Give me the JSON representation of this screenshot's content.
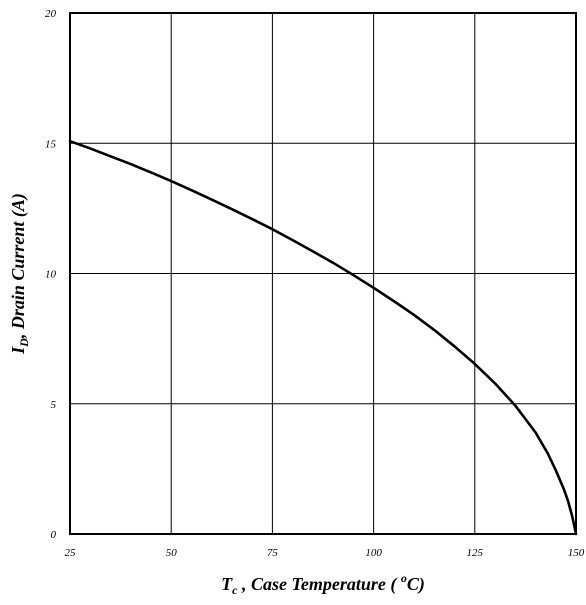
{
  "chart_data": {
    "type": "line",
    "title": "",
    "xlabel": {
      "symbol": "T",
      "subscript": "c",
      "text": " , Case Temperature (  ",
      "superscript": "o",
      "unit_tail": "C)"
    },
    "ylabel": {
      "symbol": "I",
      "subscript": "D",
      "text": ", Drain Current (A)"
    },
    "xlim": [
      25,
      150
    ],
    "ylim": [
      0,
      20
    ],
    "x_ticks": [
      25,
      50,
      75,
      100,
      125,
      150
    ],
    "y_ticks": [
      0,
      5,
      10,
      15,
      20
    ],
    "grid": true,
    "legend": "none",
    "series": [
      {
        "color": "#000000",
        "x": [
          25,
          30,
          35,
          40,
          45,
          50,
          55,
          60,
          65,
          70,
          75,
          80,
          85,
          90,
          95,
          100,
          105,
          110,
          115,
          120,
          125,
          130,
          135,
          140,
          143,
          145,
          147,
          148,
          149,
          149.6,
          150
        ],
        "y": [
          15.08,
          14.8,
          14.5,
          14.2,
          13.88,
          13.55,
          13.2,
          12.84,
          12.47,
          12.09,
          11.7,
          11.28,
          10.85,
          10.41,
          9.94,
          9.45,
          8.94,
          8.41,
          7.83,
          7.2,
          6.53,
          5.78,
          4.93,
          3.9,
          3.1,
          2.45,
          1.72,
          1.28,
          0.72,
          0.3,
          0
        ]
      }
    ]
  }
}
